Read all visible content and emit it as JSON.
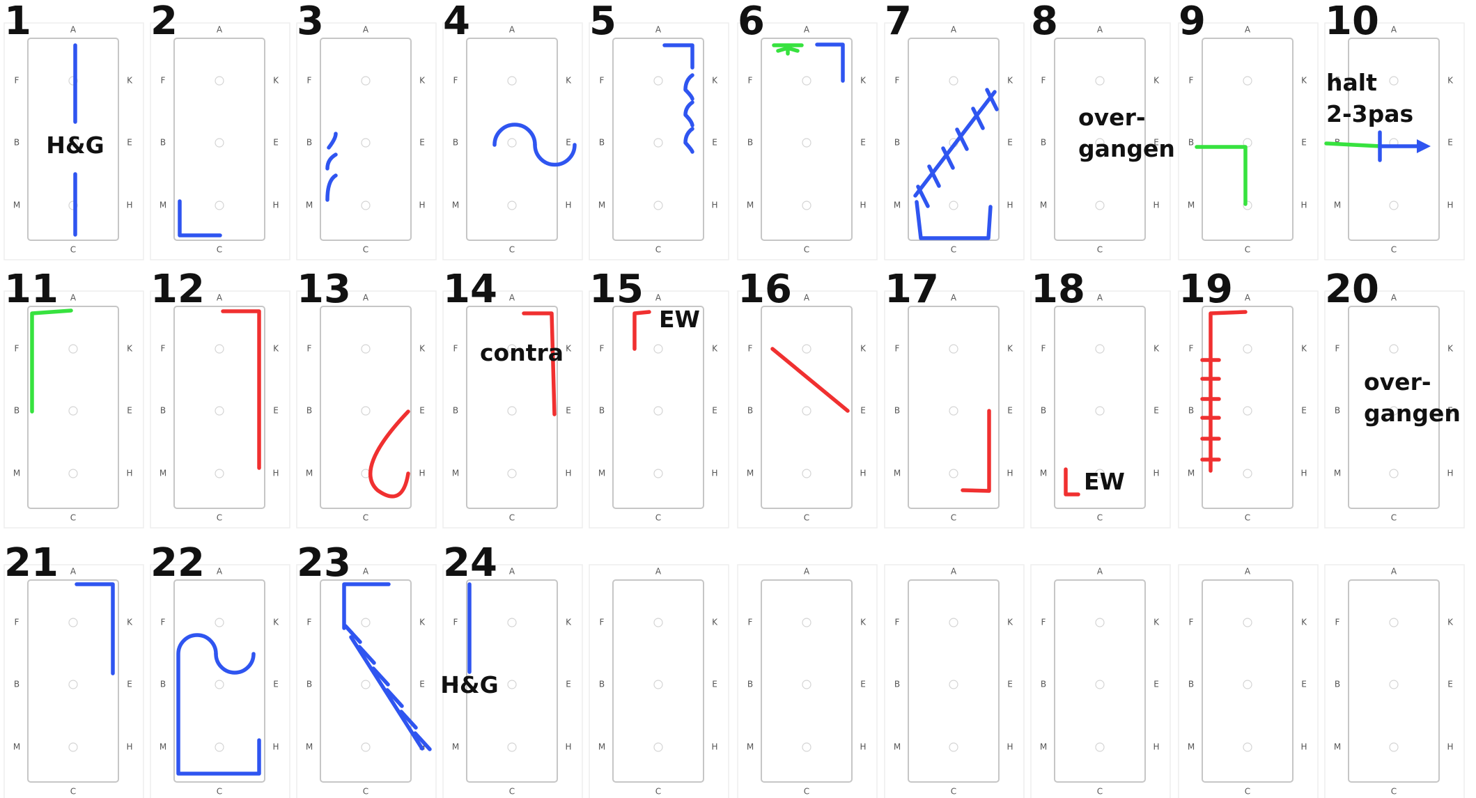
{
  "colors": {
    "blue": "#2f55f0",
    "red": "#f03030",
    "green": "#37e23f",
    "arena": "#c6c6c6",
    "text": "#111111"
  },
  "arena_letters": {
    "top": "A",
    "bottom": "C",
    "left": [
      "F",
      "B",
      "M"
    ],
    "right": [
      "K",
      "E",
      "H"
    ]
  },
  "cards": [
    {
      "number": "1",
      "labels": [
        "H&G"
      ]
    },
    {
      "number": "2",
      "labels": []
    },
    {
      "number": "3",
      "labels": []
    },
    {
      "number": "4",
      "labels": []
    },
    {
      "number": "5",
      "labels": []
    },
    {
      "number": "6",
      "labels": []
    },
    {
      "number": "7",
      "labels": []
    },
    {
      "number": "8",
      "labels": [
        "over-",
        "gangen"
      ]
    },
    {
      "number": "9",
      "labels": []
    },
    {
      "number": "10",
      "labels": [
        "halt",
        "2-3pas"
      ]
    },
    {
      "number": "11",
      "labels": []
    },
    {
      "number": "12",
      "labels": []
    },
    {
      "number": "13",
      "labels": []
    },
    {
      "number": "14",
      "labels": [
        "contra"
      ]
    },
    {
      "number": "15",
      "labels": [
        "EW"
      ]
    },
    {
      "number": "16",
      "labels": []
    },
    {
      "number": "17",
      "labels": []
    },
    {
      "number": "18",
      "labels": [
        "EW"
      ]
    },
    {
      "number": "19",
      "labels": []
    },
    {
      "number": "20",
      "labels": [
        "over-",
        "gangen"
      ]
    },
    {
      "number": "21",
      "labels": []
    },
    {
      "number": "22",
      "labels": []
    },
    {
      "number": "23",
      "labels": []
    },
    {
      "number": "24",
      "labels": [
        "H&G"
      ]
    },
    {
      "number": "",
      "labels": []
    },
    {
      "number": "",
      "labels": []
    },
    {
      "number": "",
      "labels": []
    },
    {
      "number": "",
      "labels": []
    },
    {
      "number": "",
      "labels": []
    },
    {
      "number": "",
      "labels": []
    }
  ]
}
